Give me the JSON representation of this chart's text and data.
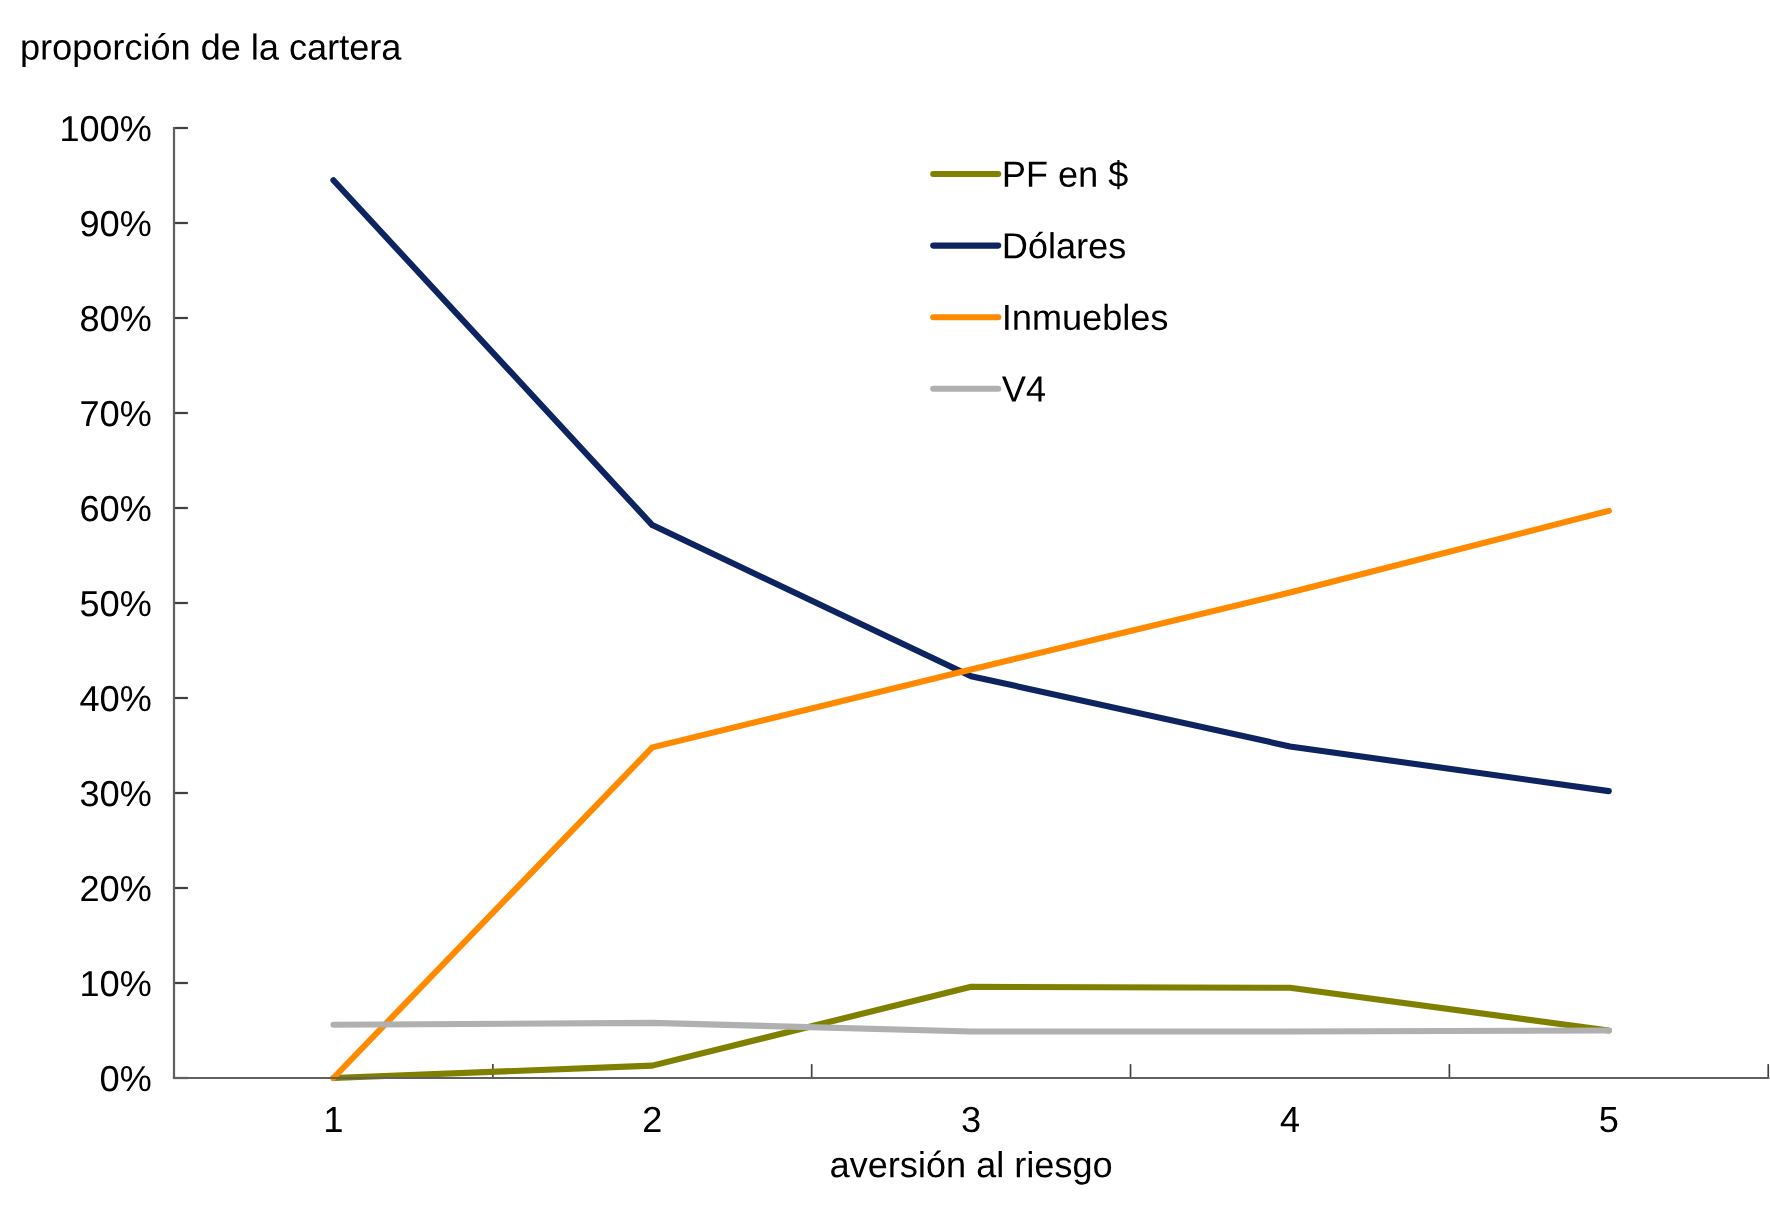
{
  "chart_data": {
    "type": "line",
    "ylabel": "proporción de la cartera",
    "xlabel": "aversión al riesgo",
    "categories": [
      "1",
      "2",
      "3",
      "4",
      "5"
    ],
    "series": [
      {
        "name": "PF en $",
        "color": "#7f8000",
        "values": [
          0,
          1.3,
          9.6,
          9.5,
          5.0
        ]
      },
      {
        "name": "Dólares",
        "color": "#0d2461",
        "values": [
          94.5,
          58.2,
          42.3,
          34.9,
          30.2
        ]
      },
      {
        "name": "Inmuebles",
        "color": "#ff8a00",
        "values": [
          0,
          34.8,
          43.0,
          51.1,
          59.7
        ]
      },
      {
        "name": "V4",
        "color": "#b0b0b0",
        "values": [
          5.6,
          5.8,
          4.9,
          4.9,
          5.0
        ]
      }
    ],
    "ylim": [
      0,
      100
    ],
    "yticks": [
      {
        "value": 0,
        "label": "0%"
      },
      {
        "value": 10,
        "label": "10%"
      },
      {
        "value": 20,
        "label": "20%"
      },
      {
        "value": 30,
        "label": "30%"
      },
      {
        "value": 40,
        "label": "40%"
      },
      {
        "value": 50,
        "label": "50%"
      },
      {
        "value": 60,
        "label": "60%"
      },
      {
        "value": 70,
        "label": "70%"
      },
      {
        "value": 80,
        "label": "80%"
      },
      {
        "value": 90,
        "label": "90%"
      },
      {
        "value": 100,
        "label": "100%"
      }
    ],
    "grid": false,
    "legend": "top",
    "marker": "none",
    "line_style": "solid"
  }
}
